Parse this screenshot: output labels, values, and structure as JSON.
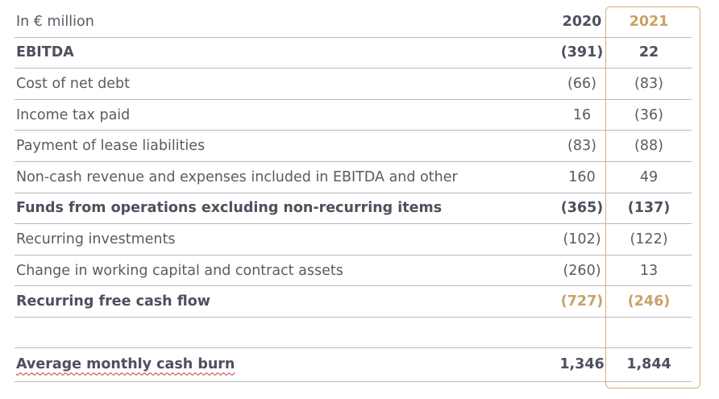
{
  "header": {
    "label": "In € million",
    "year_2020": "2020",
    "year_2021": "2021"
  },
  "rows": [
    {
      "label": "EBITDA",
      "v2020": "(391)",
      "v2021": "22"
    },
    {
      "label": "Cost of net debt",
      "v2020": "(66)",
      "v2021": "(83)"
    },
    {
      "label": "Income tax paid",
      "v2020": "16",
      "v2021": "(36)"
    },
    {
      "label": "Payment of lease liabilities",
      "v2020": "(83)",
      "v2021": "(88)"
    },
    {
      "label": "Non-cash revenue and expenses included in EBITDA and other",
      "v2020": "160",
      "v2021": "49"
    },
    {
      "label": "Funds from operations excluding non-recurring items",
      "v2020": "(365)",
      "v2021": "(137)"
    },
    {
      "label": "Recurring investments",
      "v2020": "(102)",
      "v2021": "(122)"
    },
    {
      "label": "Change in working capital and contract assets",
      "v2020": "(260)",
      "v2021": "13"
    },
    {
      "label": "Recurring free cash flow",
      "v2020": "(727)",
      "v2021": "(246)"
    }
  ],
  "cash_burn": {
    "label": "Average monthly cash burn",
    "v2020": "1,346",
    "v2021": "1,844"
  },
  "colors": {
    "accent_gold": "#c9a067",
    "text": "#5a5a66",
    "rule": "#b9b9bf"
  }
}
